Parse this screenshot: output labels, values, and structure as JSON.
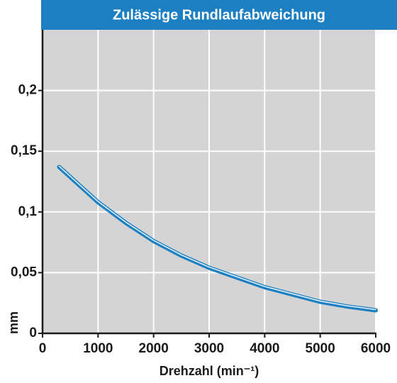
{
  "chart_data": {
    "type": "line",
    "title": "Zulässige Rundlaufabweichung",
    "x_label": "Drehzahl (min⁻¹)",
    "y_label": "mm",
    "x": [
      300,
      1000,
      1500,
      2000,
      2500,
      3000,
      3500,
      4000,
      4500,
      5000,
      5500,
      6000
    ],
    "series": [
      {
        "color": "#1b7fc1",
        "values": [
          0.137,
          0.108,
          0.091,
          0.076,
          0.064,
          0.054,
          0.046,
          0.038,
          0.032,
          0.026,
          0.022,
          0.019
        ]
      }
    ],
    "xlim": [
      0,
      6000
    ],
    "xticks": [
      0,
      1000,
      2000,
      3000,
      4000,
      5000,
      6000
    ],
    "ylim": [
      0,
      0.25
    ],
    "yticks": [
      0,
      {
        "value": 0.05,
        "label": "0,05"
      },
      {
        "value": 0.1,
        "label": "0,1"
      },
      {
        "value": 0.15,
        "label": "0,15"
      },
      {
        "value": 0.2,
        "label": "0,2"
      }
    ],
    "grid": true
  }
}
